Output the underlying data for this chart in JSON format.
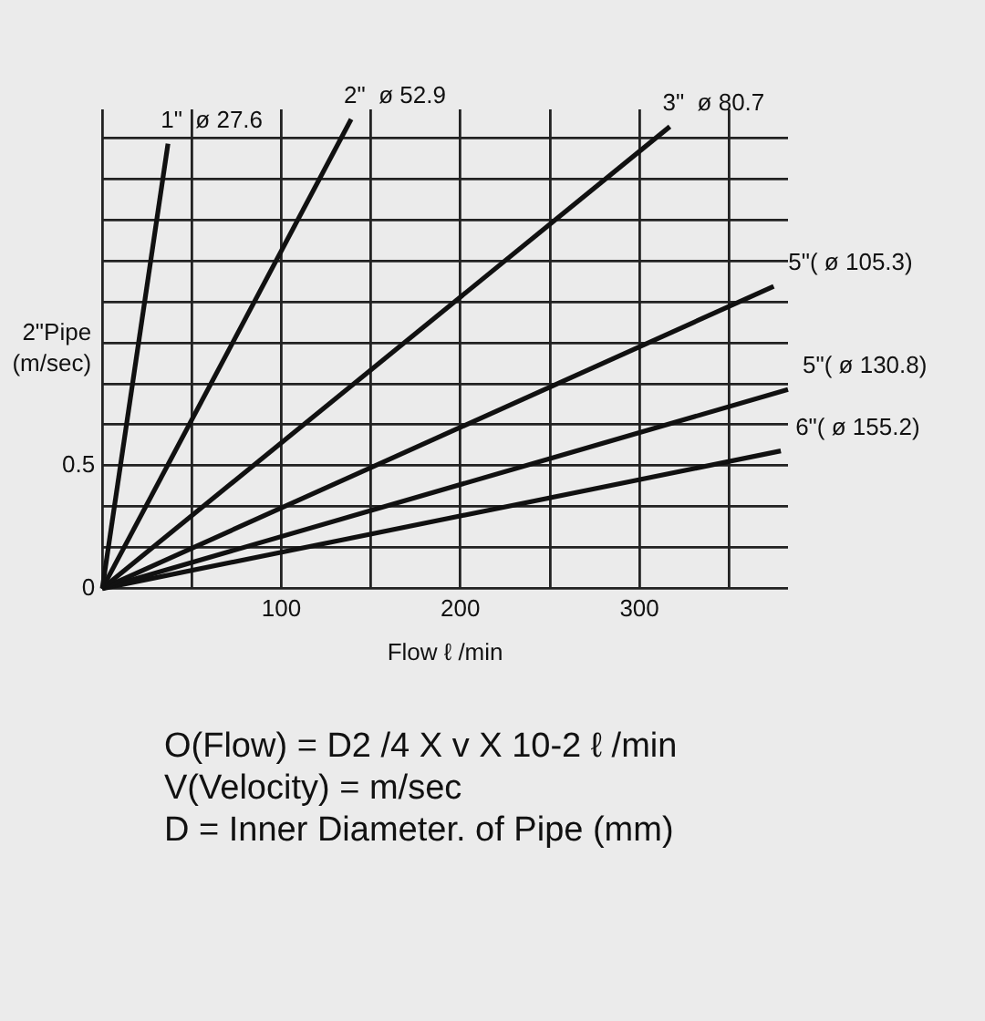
{
  "chart_data": {
    "type": "line",
    "xlabel": "Flow ℓ /min",
    "ylabel": "2\"Pipe (m/sec)",
    "xlim": [
      0,
      383
    ],
    "xticks": [
      {
        "value": 0,
        "label": null
      },
      {
        "value": 50,
        "label": null
      },
      100,
      {
        "value": 150,
        "label": null
      },
      200,
      {
        "value": 250,
        "label": null
      },
      300,
      {
        "value": 350,
        "label": null
      }
    ],
    "ylim": [
      0,
      1.95
    ],
    "yticks": [
      0,
      {
        "value": 0.1667,
        "label": null
      },
      {
        "value": 0.3333,
        "label": null
      },
      0.5,
      {
        "value": 0.6667,
        "label": null
      },
      {
        "value": 0.8333,
        "label": null
      },
      {
        "value": 1,
        "label": null
      },
      {
        "value": 1.1667,
        "label": null
      },
      {
        "value": 1.3333,
        "label": null
      },
      {
        "value": 1.5,
        "label": null
      },
      {
        "value": 1.6667,
        "label": null
      },
      {
        "value": 1.8333,
        "label": null
      }
    ],
    "grid": true,
    "legend": false,
    "marker": "none",
    "line_style": "solid",
    "series": [
      {
        "name": "1\"  ø 27.6",
        "color": "#111111",
        "x": [
          0,
          36.7
        ],
        "values": [
          0,
          1.81
        ]
      },
      {
        "name": "2\"  ø 52.9",
        "color": "#111111",
        "x": [
          0,
          139
        ],
        "values": [
          0,
          1.91
        ]
      },
      {
        "name": "3\"  ø 80.7",
        "color": "#111111",
        "x": [
          0,
          317
        ],
        "values": [
          0,
          1.88
        ]
      },
      {
        "name": "5\"( ø 105.3)",
        "color": "#111111",
        "x": [
          0,
          375
        ],
        "values": [
          0,
          1.23
        ]
      },
      {
        "name": "5\"( ø 130.8)",
        "color": "#111111",
        "x": [
          0,
          383
        ],
        "values": [
          0,
          0.81
        ]
      },
      {
        "name": "6\"( ø 155.2)",
        "color": "#111111",
        "x": [
          0,
          379
        ],
        "values": [
          0,
          0.56
        ]
      }
    ],
    "annotations": [
      "O(Flow) = D2 /4 X v X 10-2 ℓ /min",
      "V(Velocity) = m/sec",
      "D = Inner Diameter. of Pipe (mm)"
    ]
  }
}
